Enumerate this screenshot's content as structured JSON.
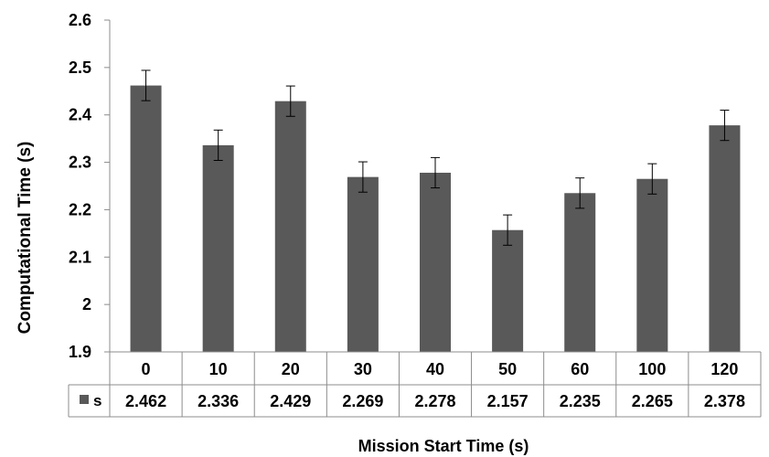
{
  "chart_data": {
    "type": "bar",
    "title": "",
    "ylabel": "Computational Time (s)",
    "xlabel": "Mission Start Time (s)",
    "ylim": [
      1.9,
      2.6
    ],
    "yticks": [
      "1.9",
      "2",
      "2.1",
      "2.2",
      "2.3",
      "2.4",
      "2.5",
      "2.6"
    ],
    "categories": [
      "0",
      "10",
      "20",
      "30",
      "40",
      "50",
      "60",
      "100",
      "120"
    ],
    "series": [
      {
        "name": "s",
        "color": "#595959",
        "values": [
          2.462,
          2.336,
          2.429,
          2.269,
          2.278,
          2.157,
          2.235,
          2.265,
          2.378
        ],
        "value_labels": [
          "2.462",
          "2.336",
          "2.429",
          "2.269",
          "2.278",
          "2.157",
          "2.235",
          "2.265",
          "2.378"
        ],
        "error": [
          0.032,
          0.032,
          0.032,
          0.032,
          0.032,
          0.032,
          0.032,
          0.032,
          0.032
        ]
      }
    ],
    "grid": false,
    "legend": "data-table"
  }
}
